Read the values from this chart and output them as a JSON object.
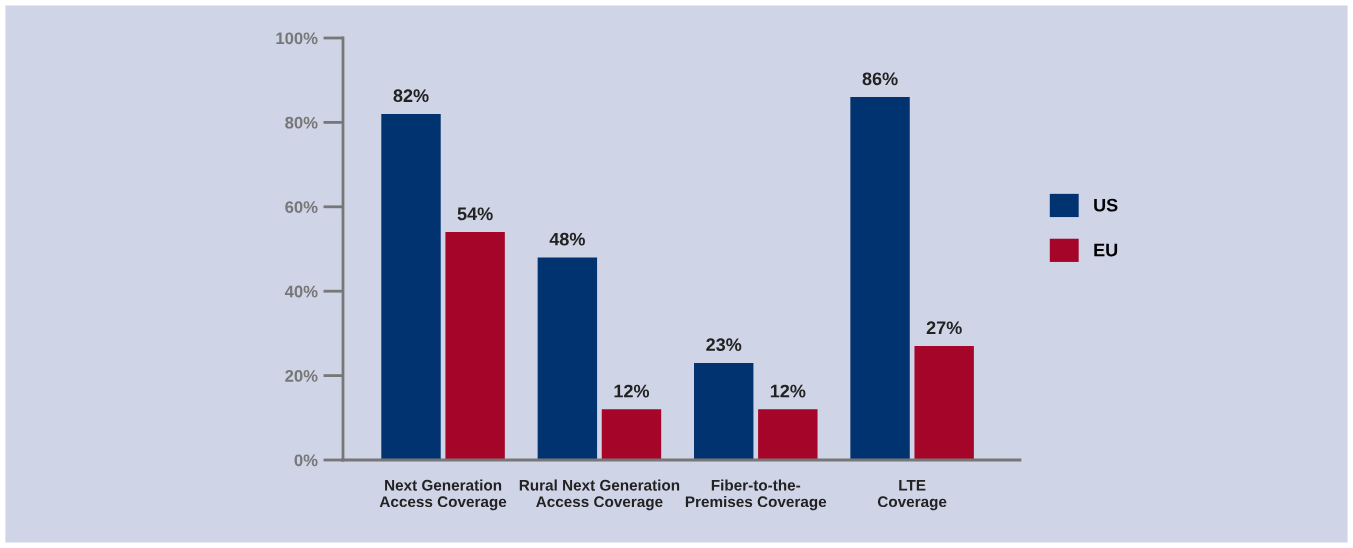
{
  "chart_data": {
    "type": "bar",
    "categories": [
      "Next Generation\nAccess Coverage",
      "Rural Next Generation\nAccess Coverage",
      "Fiber-to-the-\nPremises Coverage",
      "LTE\nCoverage"
    ],
    "series": [
      {
        "name": "US",
        "color": "#00336f",
        "values": [
          82,
          48,
          23,
          86
        ],
        "value_labels": [
          "82%",
          "48%",
          "23%",
          "86%"
        ]
      },
      {
        "name": "EU",
        "color": "#a6052a",
        "values": [
          54,
          12,
          12,
          27
        ],
        "value_labels": [
          "54%",
          "12%",
          "12%",
          "27%"
        ]
      }
    ],
    "ylim": [
      0,
      100
    ],
    "yticks": [
      {
        "value": 0,
        "label": "0%"
      },
      {
        "value": 20,
        "label": "20%"
      },
      {
        "value": 40,
        "label": "40%"
      },
      {
        "value": 60,
        "label": "60%"
      },
      {
        "value": 80,
        "label": "80%"
      },
      {
        "value": 100,
        "label": "100%"
      }
    ],
    "grid": false,
    "legend": "right"
  }
}
